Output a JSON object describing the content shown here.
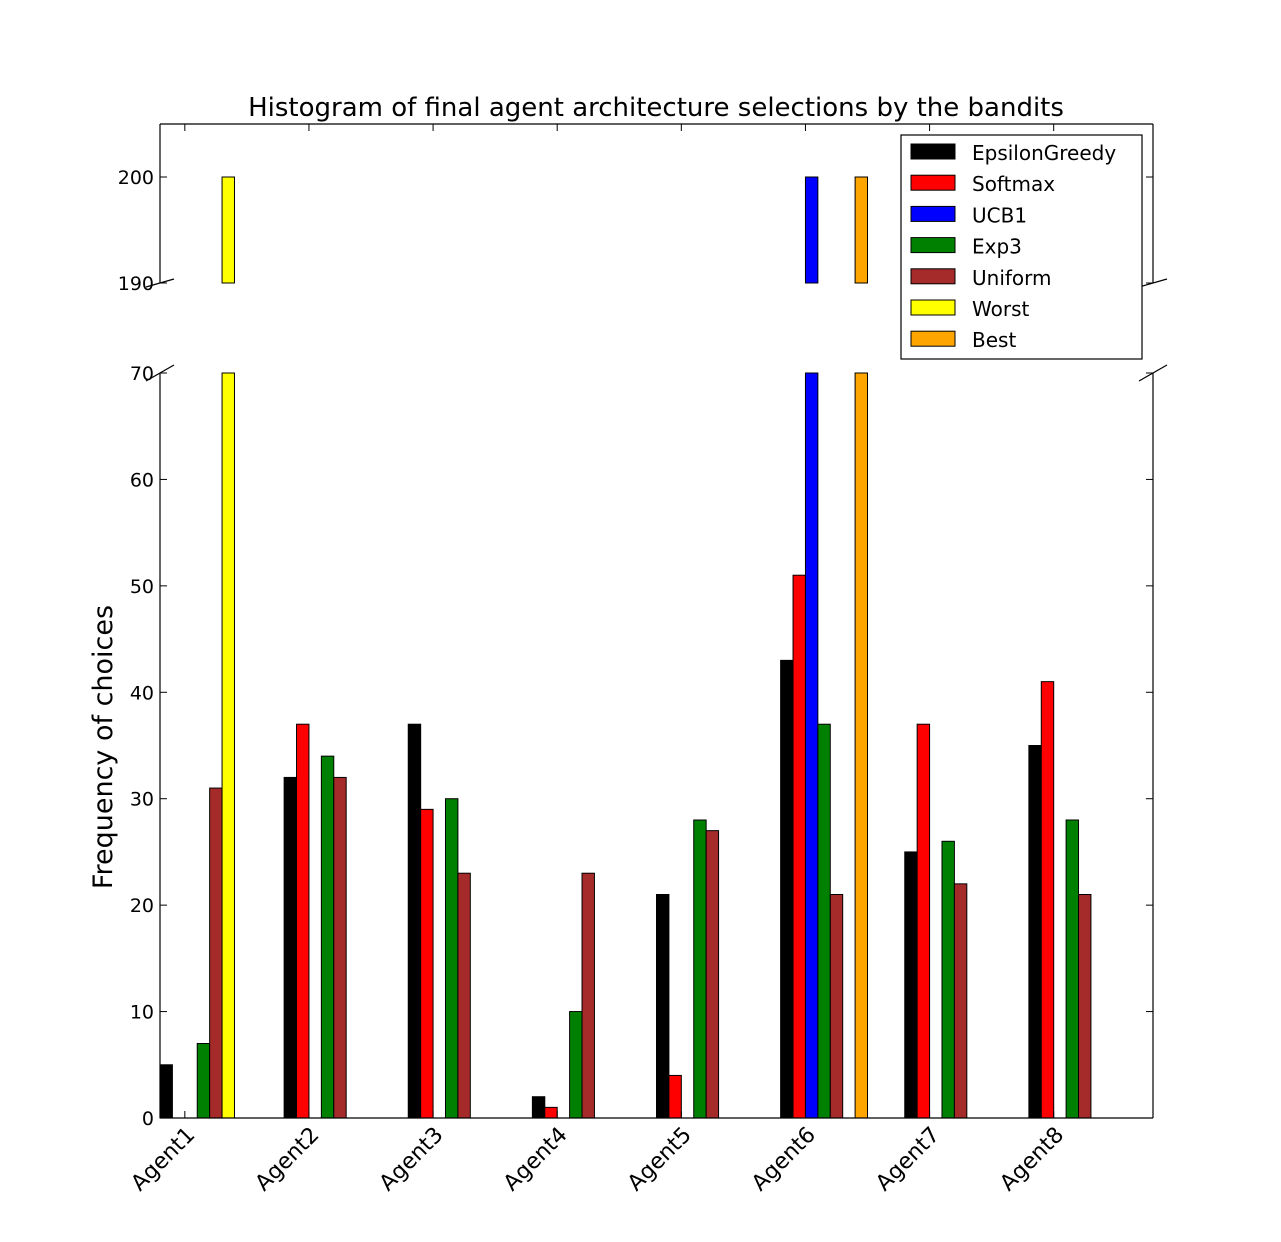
{
  "chart_data": {
    "type": "bar",
    "title": "Histogram of final agent architecture selections by the bandits",
    "xlabel": "",
    "ylabel": "Frequency of choices",
    "categories": [
      "Agent1",
      "Agent2",
      "Agent3",
      "Agent4",
      "Agent5",
      "Agent6",
      "Agent7",
      "Agent8"
    ],
    "series": [
      {
        "name": "EpsilonGreedy",
        "color": "#000000",
        "values": [
          5,
          32,
          37,
          2,
          21,
          43,
          25,
          35
        ]
      },
      {
        "name": "Softmax",
        "color": "#ff0000",
        "values": [
          0,
          37,
          29,
          1,
          4,
          51,
          37,
          41
        ]
      },
      {
        "name": "UCB1",
        "color": "#0000ff",
        "values": [
          0,
          0,
          0,
          0,
          0,
          200,
          0,
          0
        ]
      },
      {
        "name": "Exp3",
        "color": "#008000",
        "values": [
          7,
          34,
          30,
          10,
          28,
          37,
          26,
          28
        ]
      },
      {
        "name": "Uniform",
        "color": "#a52a2a",
        "values": [
          31,
          32,
          23,
          23,
          27,
          21,
          22,
          21
        ]
      },
      {
        "name": "Worst",
        "color": "#ffff00",
        "values": [
          200,
          0,
          0,
          0,
          0,
          0,
          0,
          0
        ]
      },
      {
        "name": "Best",
        "color": "#ffa500",
        "values": [
          0,
          0,
          0,
          0,
          0,
          200,
          0,
          0
        ]
      }
    ],
    "axes": {
      "broken_y_axis": true,
      "lower_ylim": [
        0,
        70
      ],
      "upper_ylim": [
        190,
        205
      ],
      "lower_yticks": [
        0,
        10,
        20,
        30,
        40,
        50,
        60,
        70
      ],
      "upper_yticks": [
        190,
        200
      ]
    },
    "legend": {
      "position": "top-right"
    },
    "grid": false
  }
}
